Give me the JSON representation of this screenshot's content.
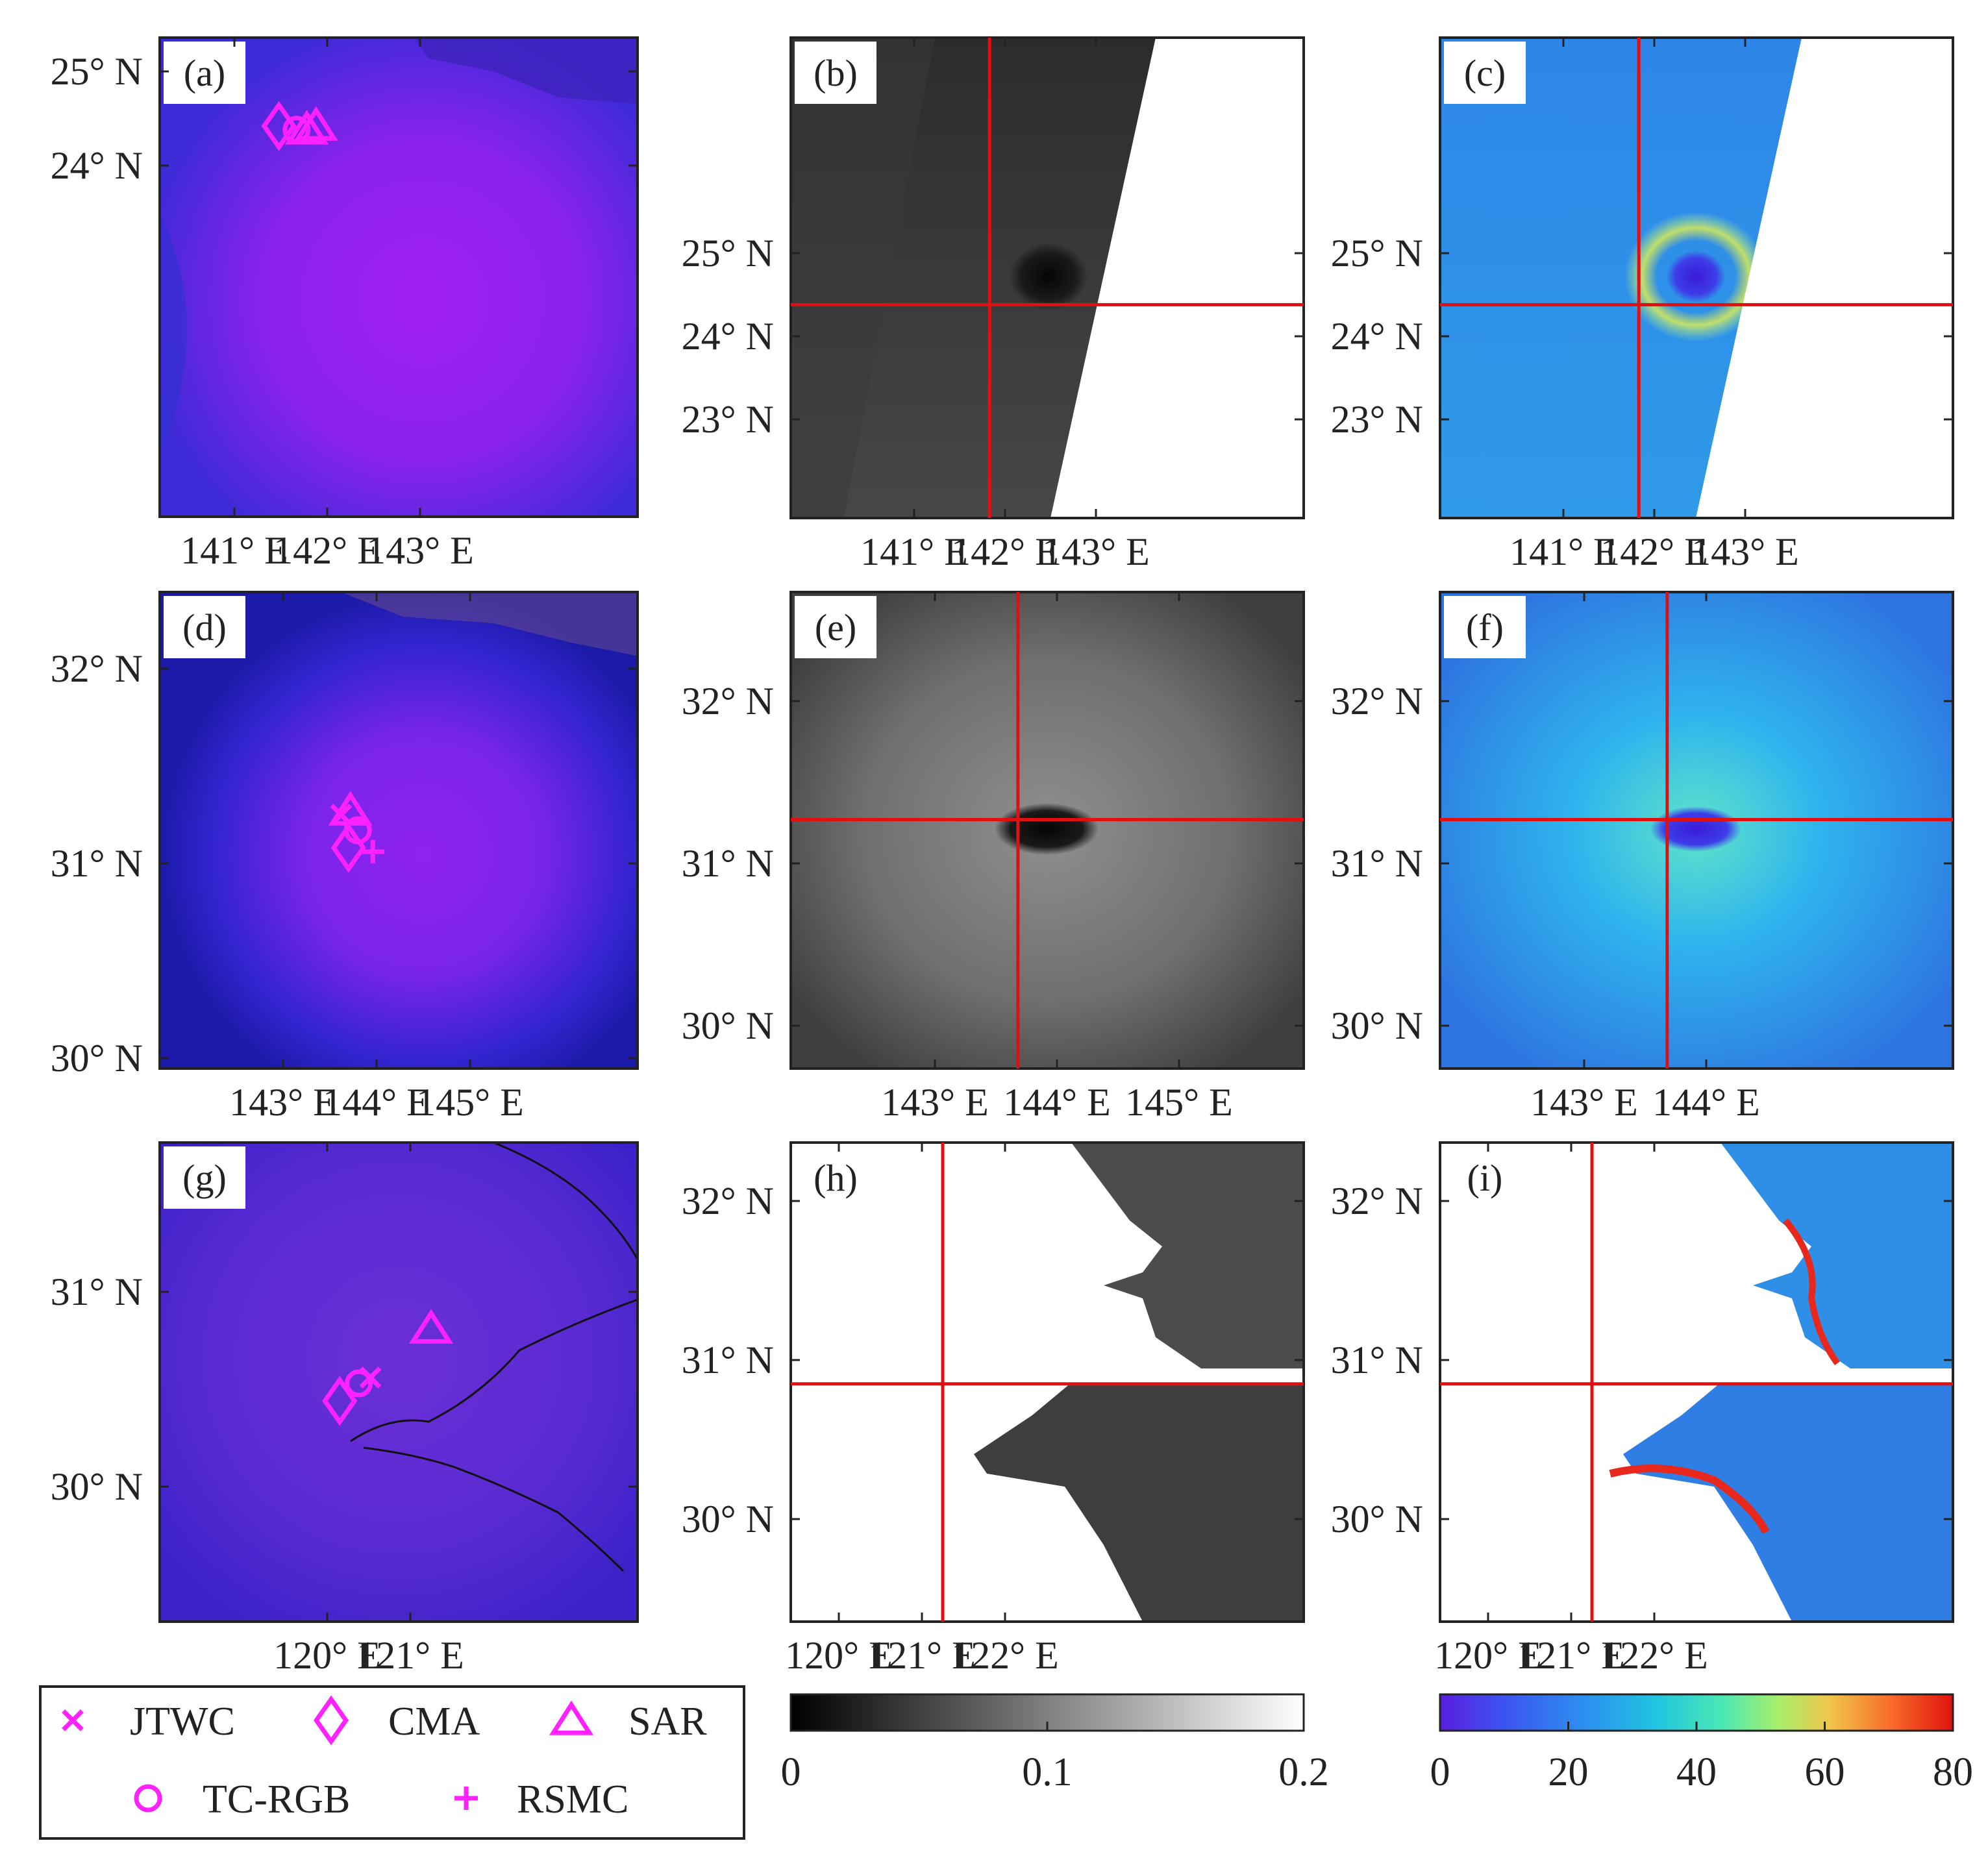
{
  "figure": {
    "panels": [
      {
        "id": "a",
        "label": "(a)",
        "type": "rgb",
        "yticks": [
          {
            "lat": 25,
            "label": "25° N"
          },
          {
            "lat": 24,
            "label": "24° N"
          }
        ],
        "xticks": [
          {
            "lon": 141,
            "label": "141° E"
          },
          {
            "lon": 142,
            "label": "142° E"
          },
          {
            "lon": 143,
            "label": "143° E"
          }
        ],
        "markers": [
          {
            "kind": "cma",
            "lon": 141.48,
            "lat": 24.42
          },
          {
            "kind": "tcrgb",
            "lon": 141.67,
            "lat": 24.38
          },
          {
            "kind": "sar",
            "lon": 141.88,
            "lat": 24.42
          },
          {
            "kind": "sar",
            "lon": 141.78,
            "lat": 24.38
          }
        ]
      },
      {
        "id": "b",
        "label": "(b)",
        "type": "gray",
        "yticks": [
          {
            "lat": 25,
            "label": "25° N"
          },
          {
            "lat": 24,
            "label": "24° N"
          },
          {
            "lat": 23,
            "label": "23° N"
          }
        ],
        "xticks": [
          {
            "lon": 141,
            "label": "141° E"
          },
          {
            "lon": 142,
            "label": "142° E"
          },
          {
            "lon": 143,
            "label": "143° E"
          }
        ],
        "crosshair": {
          "lon": 141.83,
          "lat": 24.38
        }
      },
      {
        "id": "c",
        "label": "(c)",
        "type": "color",
        "yticks": [
          {
            "lat": 25,
            "label": "25° N"
          },
          {
            "lat": 24,
            "label": "24° N"
          },
          {
            "lat": 23,
            "label": "23° N"
          }
        ],
        "xticks": [
          {
            "lon": 141,
            "label": "141° E"
          },
          {
            "lon": 142,
            "label": "142° E"
          },
          {
            "lon": 143,
            "label": "143° E"
          }
        ],
        "crosshair": {
          "lon": 141.83,
          "lat": 24.38
        }
      },
      {
        "id": "d",
        "label": "(d)",
        "type": "rgb",
        "yticks": [
          {
            "lat": 32,
            "label": "32° N"
          },
          {
            "lat": 31,
            "label": "31° N"
          },
          {
            "lat": 30,
            "label": "30° N"
          }
        ],
        "xticks": [
          {
            "lon": 143,
            "label": "143° E"
          },
          {
            "lon": 144,
            "label": "144° E"
          },
          {
            "lon": 145,
            "label": "145° E"
          }
        ],
        "markers": [
          {
            "kind": "jtwc",
            "lon": 143.62,
            "lat": 31.25
          },
          {
            "kind": "sar",
            "lon": 143.72,
            "lat": 31.27
          },
          {
            "kind": "tcrgb",
            "lon": 143.8,
            "lat": 31.17
          },
          {
            "kind": "cma",
            "lon": 143.7,
            "lat": 31.08
          },
          {
            "kind": "rsmc",
            "lon": 143.96,
            "lat": 31.06
          }
        ]
      },
      {
        "id": "e",
        "label": "(e)",
        "type": "gray",
        "yticks": [
          {
            "lat": 32,
            "label": "32° N"
          },
          {
            "lat": 31,
            "label": "31° N"
          },
          {
            "lat": 30,
            "label": "30° N"
          }
        ],
        "xticks": [
          {
            "lon": 143,
            "label": "143° E"
          },
          {
            "lon": 144,
            "label": "144° E"
          },
          {
            "lon": 145,
            "label": "145° E"
          }
        ],
        "crosshair": {
          "lon": 143.68,
          "lat": 31.27
        }
      },
      {
        "id": "f",
        "label": "(f)",
        "type": "color",
        "yticks": [
          {
            "lat": 32,
            "label": "32° N"
          },
          {
            "lat": 31,
            "label": "31° N"
          },
          {
            "lat": 30,
            "label": "30° N"
          }
        ],
        "xticks": [
          {
            "lon": 143,
            "label": "143° E"
          },
          {
            "lon": 144,
            "label": "144° E"
          }
        ],
        "crosshair": {
          "lon": 143.68,
          "lat": 31.27
        }
      },
      {
        "id": "g",
        "label": "(g)",
        "type": "rgb",
        "yticks": [
          {
            "lat": 31,
            "label": "31° N"
          },
          {
            "lat": 30,
            "label": "30° N"
          }
        ],
        "xticks": [
          {
            "lon": 120,
            "label": "120° E"
          },
          {
            "lon": 121,
            "label": "121° E"
          }
        ],
        "markers": [
          {
            "kind": "sar",
            "lon": 121.25,
            "lat": 30.81
          },
          {
            "kind": "cma",
            "lon": 120.15,
            "lat": 30.44
          },
          {
            "kind": "tcrgb",
            "lon": 120.38,
            "lat": 30.53
          },
          {
            "kind": "jtwc",
            "lon": 120.52,
            "lat": 30.56
          }
        ]
      },
      {
        "id": "h",
        "label": "(h)",
        "type": "gray-coast",
        "yticks": [
          {
            "lat": 32,
            "label": "32° N"
          },
          {
            "lat": 31,
            "label": "31° N"
          },
          {
            "lat": 30,
            "label": "30° N"
          }
        ],
        "xticks": [
          {
            "lon": 120,
            "label": "120° E"
          },
          {
            "lon": 121,
            "label": "121° E"
          },
          {
            "lon": 122,
            "label": "122° E"
          }
        ],
        "crosshair": {
          "lon": 121.25,
          "lat": 30.85
        }
      },
      {
        "id": "i",
        "label": "(i)",
        "type": "color-coast",
        "yticks": [
          {
            "lat": 32,
            "label": "32° N"
          },
          {
            "lat": 31,
            "label": "31° N"
          },
          {
            "lat": 30,
            "label": "30° N"
          }
        ],
        "xticks": [
          {
            "lon": 120,
            "label": "120° E"
          },
          {
            "lon": 121,
            "label": "121° E"
          },
          {
            "lon": 122,
            "label": "122° E"
          }
        ],
        "crosshair": {
          "lon": 121.25,
          "lat": 30.85
        }
      }
    ],
    "legend": [
      {
        "kind": "jtwc",
        "label": "JTWC"
      },
      {
        "kind": "cma",
        "label": "CMA"
      },
      {
        "kind": "sar",
        "label": "SAR"
      },
      {
        "kind": "tcrgb",
        "label": "TC-RGB"
      },
      {
        "kind": "rsmc",
        "label": "RSMC"
      }
    ],
    "colorbars": [
      {
        "id": "gray",
        "ticks": [
          "0",
          "0.1",
          "0.2"
        ],
        "range": [
          0,
          0.2
        ]
      },
      {
        "id": "jet",
        "ticks": [
          "0",
          "20",
          "40",
          "60",
          "80"
        ],
        "range": [
          0,
          80
        ]
      }
    ],
    "colors": {
      "marker": "#ff22ff",
      "crosshair": "#e01010",
      "rgb_bg": "#4a2ad8",
      "rgb_core": "#9b1ff0"
    }
  }
}
